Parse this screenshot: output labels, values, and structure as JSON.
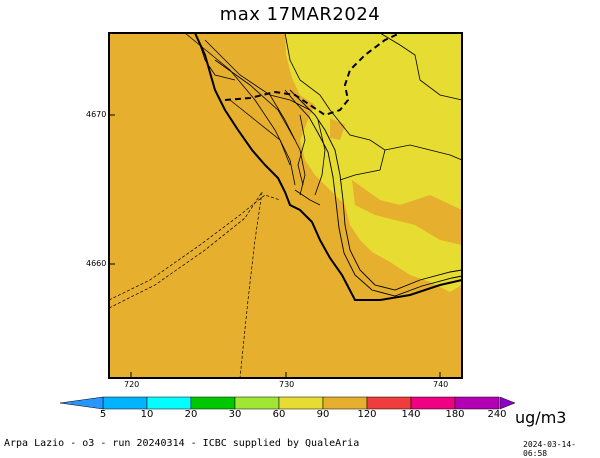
{
  "title": "max 17MAR2024",
  "axes": {
    "x_ticks": [
      "720",
      "730",
      "740"
    ],
    "y_ticks": [
      "4670",
      "4660"
    ]
  },
  "colorbar": {
    "labels": [
      "5",
      "10",
      "20",
      "30",
      "60",
      "90",
      "120",
      "140",
      "180",
      "240"
    ],
    "colors": [
      "#00b4ff",
      "#00ffff",
      "#00c800",
      "#a0e632",
      "#e6dc32",
      "#e6af2d",
      "#f03c3c",
      "#f00082",
      "#b400b4",
      "#8c00c8",
      "#2896ff"
    ],
    "units": "ug/m3"
  },
  "map_colors": {
    "orange": "#e6af2d",
    "yellow": "#e6dc32"
  },
  "footer": "Arpa Lazio - o3 - run 20240314 - ICBC supplied by QualeAria",
  "timestamp": "2024-03-14-06:58"
}
